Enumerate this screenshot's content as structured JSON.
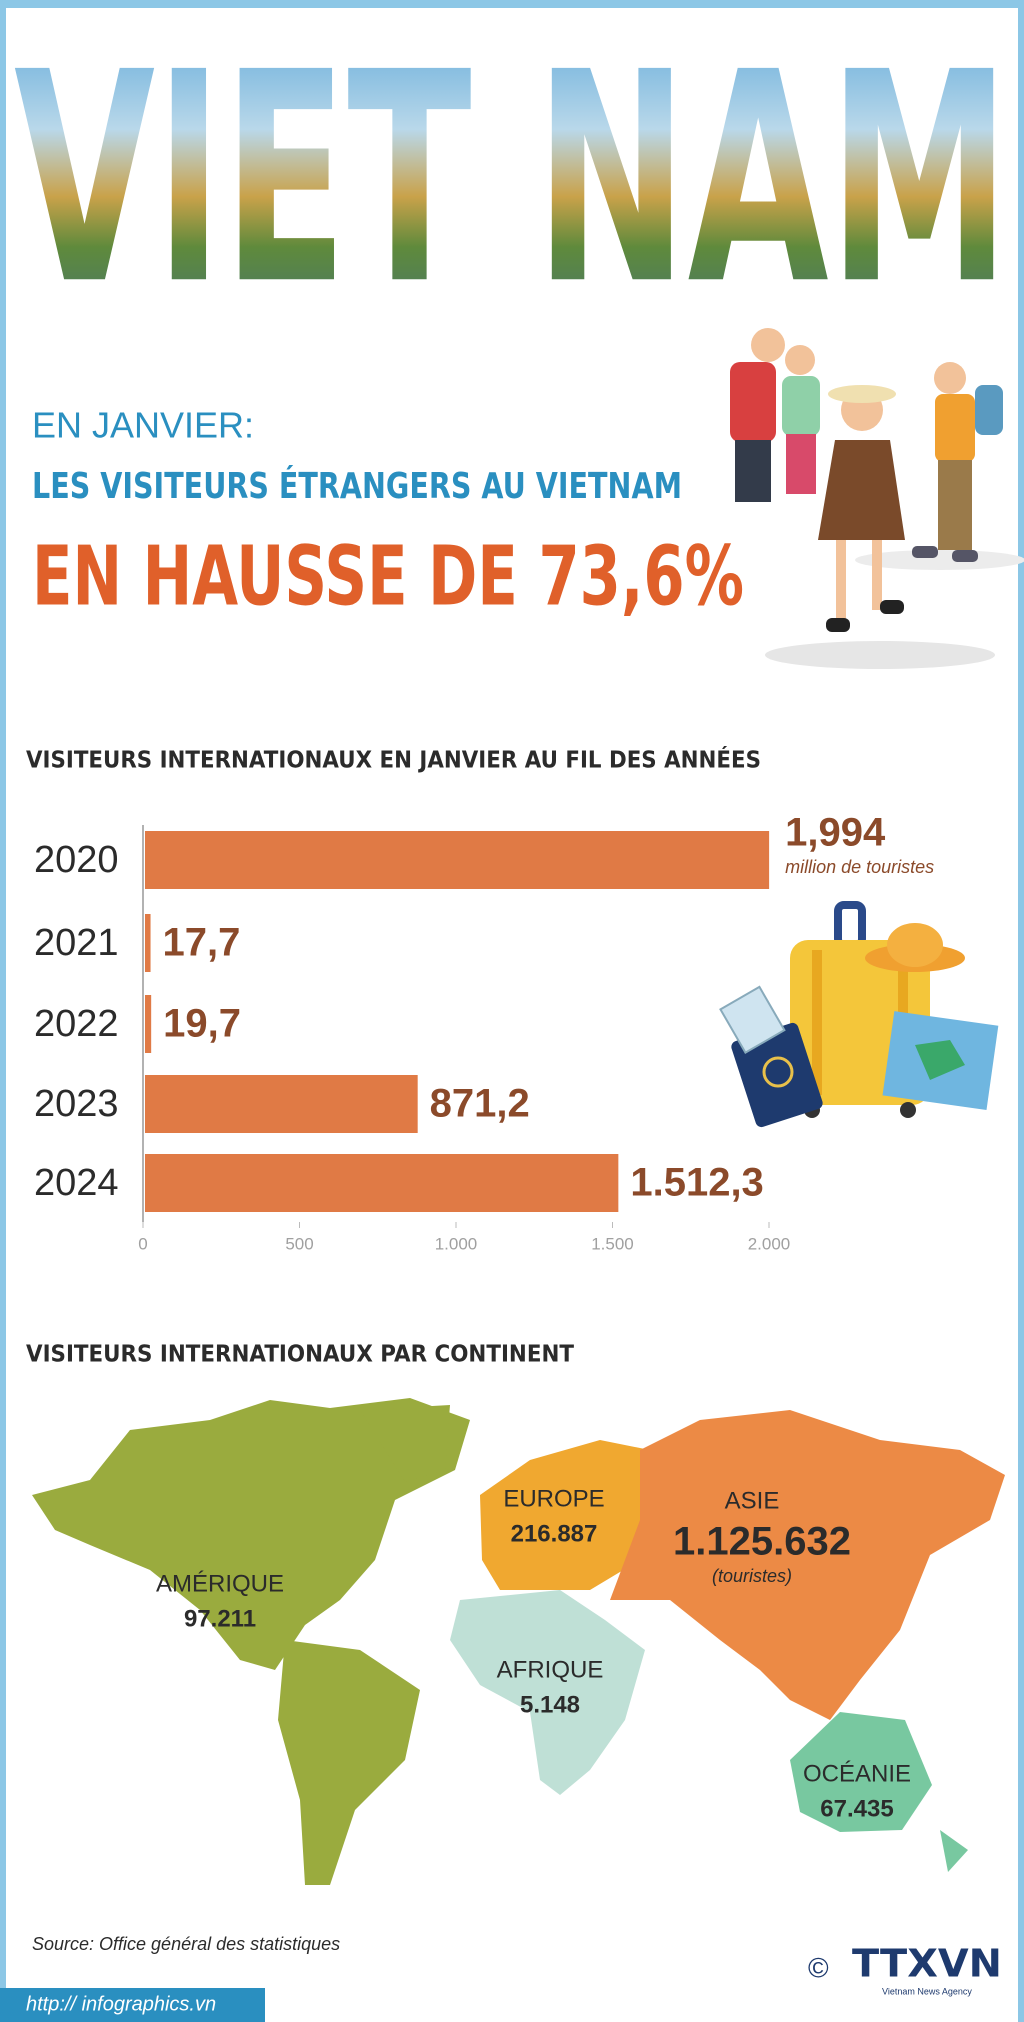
{
  "header": {
    "title": "VIET NAM",
    "kicker": "EN JANVIER:",
    "headline": "LES VISITEURS ÉTRANGERS AU VIETNAM",
    "highlight": "EN HAUSSE DE 73,6%"
  },
  "chart_data": {
    "type": "bar",
    "orientation": "horizontal",
    "title": "VISITEURS INTERNATIONAUX EN JANVIER AU FIL DES ANNÉES",
    "categories": [
      "2020",
      "2021",
      "2022",
      "2023",
      "2024"
    ],
    "values": [
      1994,
      17.7,
      19.7,
      871.2,
      1512.3
    ],
    "value_labels": [
      "1,994",
      "17,7",
      "19,7",
      "871,2",
      "1.512,3"
    ],
    "unit_note": "million de touristes",
    "color": "#e07a45",
    "xlim": [
      0,
      2000
    ],
    "xticks": [
      0,
      500,
      {
        "value": 1000,
        "label": "1.000"
      },
      {
        "value": 1500,
        "label": "1.500"
      },
      {
        "value": 2000,
        "label": "2.000"
      }
    ]
  },
  "map": {
    "title": "VISITEURS INTERNATIONAUX PAR CONTINENT",
    "regions": [
      {
        "name": "AMÉRIQUE",
        "value": "97.211"
      },
      {
        "name": "EUROPE",
        "value": "216.887"
      },
      {
        "name": "ASIE",
        "value": "1.125.632"
      },
      {
        "name": "AFRIQUE",
        "value": "5.148"
      },
      {
        "name": "OCÉANIE",
        "value": "67.435"
      }
    ],
    "unit_note": "(touristes)"
  },
  "footer": {
    "source": "Source: Office général des statistiques",
    "copyright": "©",
    "brand": "TTXVN",
    "brand_sub": "Vietnam News Agency",
    "url": "http:// infographics.vn"
  }
}
